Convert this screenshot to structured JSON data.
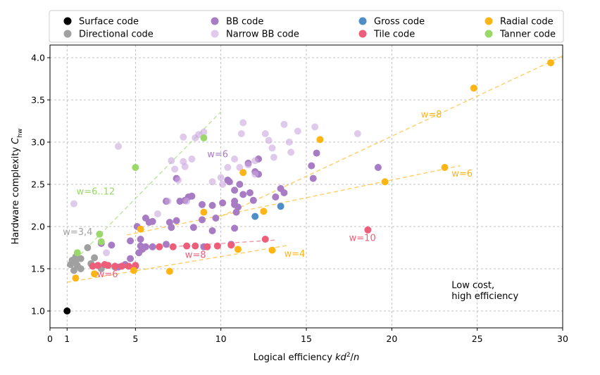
{
  "chart_data": {
    "type": "scatter",
    "xlabel": "Logical efficiency kd²/n",
    "ylabel": "Hardware complexity C_hw",
    "xlim": [
      0,
      30
    ],
    "ylim": [
      0.8,
      4.15
    ],
    "xticks": [
      0,
      1,
      5,
      10,
      15,
      20,
      25,
      30
    ],
    "xtick_labels": [
      "0",
      "1",
      "5",
      "10",
      "15",
      "20",
      "25",
      "30"
    ],
    "yticks": [
      1.0,
      1.5,
      2.0,
      2.5,
      3.0,
      3.5,
      4.0
    ],
    "ytick_labels": [
      "1.0",
      "1.5",
      "2.0",
      "2.5",
      "3.0",
      "3.5",
      "4.0"
    ],
    "grid": true,
    "legend_position": "top",
    "series": [
      {
        "name": "Surface code",
        "color": "#000000",
        "alpha": 1,
        "points": [
          [
            1.0,
            1.0
          ]
        ]
      },
      {
        "name": "Directional code",
        "color": "#a0a0a0",
        "alpha": 1,
        "points": [
          [
            1.5,
            1.64
          ],
          [
            1.8,
            1.62
          ],
          [
            2.2,
            1.75
          ],
          [
            2.6,
            1.63
          ],
          [
            1.5,
            1.57
          ],
          [
            1.2,
            1.55
          ],
          [
            1.6,
            1.54
          ],
          [
            1.8,
            1.5
          ],
          [
            1.4,
            1.48
          ],
          [
            2.4,
            1.56
          ],
          [
            3.0,
            1.5
          ],
          [
            3.8,
            1.52
          ],
          [
            1.3,
            1.6
          ]
        ]
      },
      {
        "name": "BB code",
        "color": "#a77cc4",
        "alpha": 1,
        "points": [
          [
            3.0,
            1.8
          ],
          [
            3.6,
            1.78
          ],
          [
            4.0,
            1.52
          ],
          [
            4.4,
            1.55
          ],
          [
            4.7,
            1.62
          ],
          [
            4.7,
            1.83
          ],
          [
            5.0,
            1.53
          ],
          [
            5.1,
            2.0
          ],
          [
            5.2,
            1.69
          ],
          [
            5.3,
            1.77
          ],
          [
            5.3,
            1.85
          ],
          [
            5.4,
            1.73
          ],
          [
            5.6,
            1.76
          ],
          [
            5.6,
            2.1
          ],
          [
            5.8,
            2.05
          ],
          [
            6.0,
            2.06
          ],
          [
            6.0,
            1.76
          ],
          [
            6.8,
            1.79
          ],
          [
            6.8,
            2.3
          ],
          [
            7.0,
            2.05
          ],
          [
            7.1,
            1.99
          ],
          [
            7.4,
            2.07
          ],
          [
            7.4,
            2.57
          ],
          [
            7.6,
            2.3
          ],
          [
            7.9,
            2.31
          ],
          [
            8.1,
            2.35
          ],
          [
            8.3,
            2.36
          ],
          [
            8.4,
            1.99
          ],
          [
            8.9,
            2.26
          ],
          [
            8.9,
            2.08
          ],
          [
            9.0,
            1.76
          ],
          [
            9.5,
            2.25
          ],
          [
            9.5,
            1.95
          ],
          [
            9.7,
            2.1
          ],
          [
            10.1,
            2.28
          ],
          [
            10.4,
            2.55
          ],
          [
            10.5,
            2.53
          ],
          [
            10.6,
            1.79
          ],
          [
            10.8,
            1.98
          ],
          [
            10.8,
            2.26
          ],
          [
            10.8,
            2.3
          ],
          [
            10.8,
            2.43
          ],
          [
            10.9,
            2.17
          ],
          [
            11.0,
            2.23
          ],
          [
            11.1,
            2.5
          ],
          [
            11.3,
            2.38
          ],
          [
            11.6,
            2.75
          ],
          [
            11.7,
            2.4
          ],
          [
            11.9,
            2.31
          ],
          [
            12.0,
            2.65
          ],
          [
            12.2,
            2.62
          ],
          [
            12.2,
            2.8
          ],
          [
            13.2,
            2.35
          ],
          [
            13.5,
            2.45
          ],
          [
            13.7,
            2.4
          ],
          [
            15.3,
            2.72
          ],
          [
            15.4,
            2.57
          ],
          [
            15.6,
            2.87
          ],
          [
            19.2,
            2.7
          ]
        ]
      },
      {
        "name": "Narrow BB code",
        "color": "#c9a7dd",
        "alpha": 0.6,
        "points": [
          [
            1.4,
            2.27
          ],
          [
            3.3,
            1.69
          ],
          [
            4.0,
            2.95
          ],
          [
            6.3,
            2.15
          ],
          [
            6.9,
            2.3
          ],
          [
            7.1,
            2.78
          ],
          [
            7.3,
            2.68
          ],
          [
            7.5,
            2.55
          ],
          [
            7.8,
            2.77
          ],
          [
            7.8,
            3.06
          ],
          [
            7.9,
            2.71
          ],
          [
            8.0,
            2.3
          ],
          [
            8.3,
            2.8
          ],
          [
            8.5,
            3.05
          ],
          [
            8.7,
            3.09
          ],
          [
            9.0,
            3.12
          ],
          [
            9.5,
            2.53
          ],
          [
            10.0,
            2.58
          ],
          [
            10.1,
            2.5
          ],
          [
            10.4,
            2.7
          ],
          [
            10.8,
            2.8
          ],
          [
            11.1,
            2.7
          ],
          [
            11.2,
            3.1
          ],
          [
            11.3,
            3.23
          ],
          [
            11.6,
            2.73
          ],
          [
            12.0,
            2.62
          ],
          [
            12.0,
            2.78
          ],
          [
            12.6,
            3.1
          ],
          [
            12.8,
            3.02
          ],
          [
            13.0,
            2.93
          ],
          [
            13.1,
            2.82
          ],
          [
            13.7,
            3.21
          ],
          [
            14.0,
            3.0
          ],
          [
            14.1,
            2.88
          ],
          [
            14.5,
            3.13
          ],
          [
            15.5,
            3.18
          ],
          [
            18.0,
            3.1
          ]
        ]
      },
      {
        "name": "Gross code",
        "color": "#4e8dc6",
        "alpha": 1,
        "points": [
          [
            12.0,
            2.12
          ],
          [
            13.5,
            2.24
          ]
        ]
      },
      {
        "name": "Tile code",
        "color": "#ec5e7a",
        "alpha": 1,
        "points": [
          [
            2.5,
            1.53
          ],
          [
            2.8,
            1.54
          ],
          [
            3.2,
            1.55
          ],
          [
            3.4,
            1.54
          ],
          [
            3.8,
            1.53
          ],
          [
            4.2,
            1.53
          ],
          [
            4.6,
            1.53
          ],
          [
            5.0,
            1.54
          ],
          [
            6.4,
            1.76
          ],
          [
            7.2,
            1.76
          ],
          [
            8.0,
            1.77
          ],
          [
            8.5,
            1.77
          ],
          [
            9.2,
            1.76
          ],
          [
            9.8,
            1.77
          ],
          [
            10.6,
            1.78
          ],
          [
            12.6,
            1.85
          ],
          [
            18.6,
            1.96
          ]
        ]
      },
      {
        "name": "Radial code",
        "color": "#fdb515",
        "alpha": 1,
        "points": [
          [
            1.5,
            1.39
          ],
          [
            2.6,
            1.44
          ],
          [
            4.9,
            1.48
          ],
          [
            5.3,
            1.97
          ],
          [
            7.0,
            1.47
          ],
          [
            9.0,
            2.17
          ],
          [
            11.0,
            1.73
          ],
          [
            11.3,
            2.64
          ],
          [
            12.5,
            2.18
          ],
          [
            13.0,
            1.72
          ],
          [
            15.8,
            3.03
          ],
          [
            19.6,
            2.53
          ],
          [
            23.1,
            2.7
          ],
          [
            24.8,
            3.64
          ],
          [
            29.3,
            3.94
          ]
        ]
      },
      {
        "name": "Tanner code",
        "color": "#9ad86a",
        "alpha": 1,
        "points": [
          [
            1.6,
            1.69
          ],
          [
            2.9,
            1.91
          ],
          [
            3.0,
            1.82
          ],
          [
            5.0,
            2.7
          ],
          [
            9.0,
            3.05
          ]
        ]
      }
    ],
    "trend_lines": [
      {
        "label": "w=6..12",
        "color": "#9ad86a",
        "from": [
          1.2,
          1.55
        ],
        "to": [
          10.0,
          3.36
        ]
      },
      {
        "label": "w=8",
        "color": "#fdb515",
        "from": [
          10.0,
          2.12
        ],
        "to": [
          30.0,
          4.02
        ]
      },
      {
        "label": "w=6",
        "color": "#fdb515",
        "from": [
          4.5,
          1.9
        ],
        "to": [
          24.0,
          2.72
        ]
      },
      {
        "label": "w=4",
        "color": "#fdb515",
        "from": [
          1.0,
          1.34
        ],
        "to": [
          14.0,
          1.78
        ]
      },
      {
        "label": "w=8",
        "color": "#ec5e7a",
        "from": [
          5.5,
          1.74
        ],
        "to": [
          13.2,
          1.84
        ]
      }
    ],
    "annotations": [
      {
        "text": "w=3,4",
        "color": "#a0a0a0",
        "x": 0.75,
        "y": 1.9
      },
      {
        "text": "w=6..12",
        "color": "#9ad86a",
        "x": 1.55,
        "y": 2.38
      },
      {
        "text": "w=6",
        "color": "#a77cc4",
        "x": 9.2,
        "y": 2.82
      },
      {
        "text": "w=8",
        "color": "#fdb515",
        "x": 21.7,
        "y": 3.29
      },
      {
        "text": "w=6",
        "color": "#fdb515",
        "x": 23.5,
        "y": 2.59
      },
      {
        "text": "w=4",
        "color": "#fdb515",
        "x": 13.7,
        "y": 1.64
      },
      {
        "text": "w=10",
        "color": "#ec5e7a",
        "x": 17.5,
        "y": 1.83
      },
      {
        "text": "w=8",
        "color": "#ec5e7a",
        "x": 7.9,
        "y": 1.63
      },
      {
        "text": "w=6",
        "color": "#ec5e7a",
        "x": 2.75,
        "y": 1.4
      },
      {
        "text": "Low cost,",
        "color": "#000000",
        "x": 23.5,
        "y": 1.27
      },
      {
        "text": "high efficiency",
        "color": "#000000",
        "x": 23.5,
        "y": 1.14
      }
    ]
  }
}
